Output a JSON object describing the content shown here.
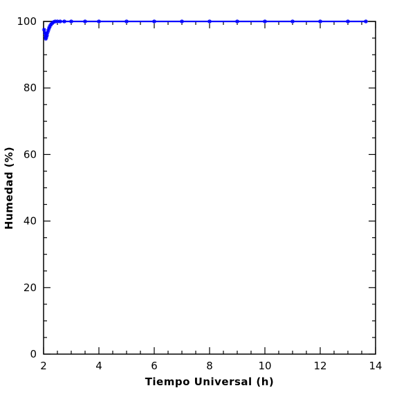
{
  "chart_data": {
    "type": "scatter",
    "title": "",
    "xlabel": "Tiempo Universal (h)",
    "ylabel": "Humedad (%)",
    "xlim": [
      2,
      14
    ],
    "ylim": [
      0,
      100
    ],
    "xticks": [
      "2",
      "4",
      "6",
      "8",
      "10",
      "12",
      "14"
    ],
    "yticks": [
      "0",
      "20",
      "40",
      "60",
      "80",
      "100"
    ],
    "grid": false,
    "marker": "asterisk",
    "color": "#0000ff",
    "series": [
      {
        "x": [
          2.02,
          2.05,
          2.07,
          2.08,
          2.1,
          2.12,
          2.14,
          2.17,
          2.2,
          2.23,
          2.27,
          2.31,
          2.36,
          2.42,
          2.5,
          2.6,
          2.75,
          3.0,
          3.5,
          4.0,
          5.0,
          6.0,
          7.0,
          8.0,
          9.0,
          10.0,
          11.0,
          12.0,
          13.0,
          13.65
        ],
        "y": [
          97.5,
          96.5,
          95.5,
          94.8,
          95.3,
          95.8,
          96.6,
          97.3,
          98.0,
          98.6,
          99.1,
          99.5,
          99.8,
          100,
          100,
          100,
          100,
          100,
          100,
          100,
          100,
          100,
          100,
          100,
          100,
          100,
          100,
          100,
          100,
          100
        ]
      }
    ]
  }
}
